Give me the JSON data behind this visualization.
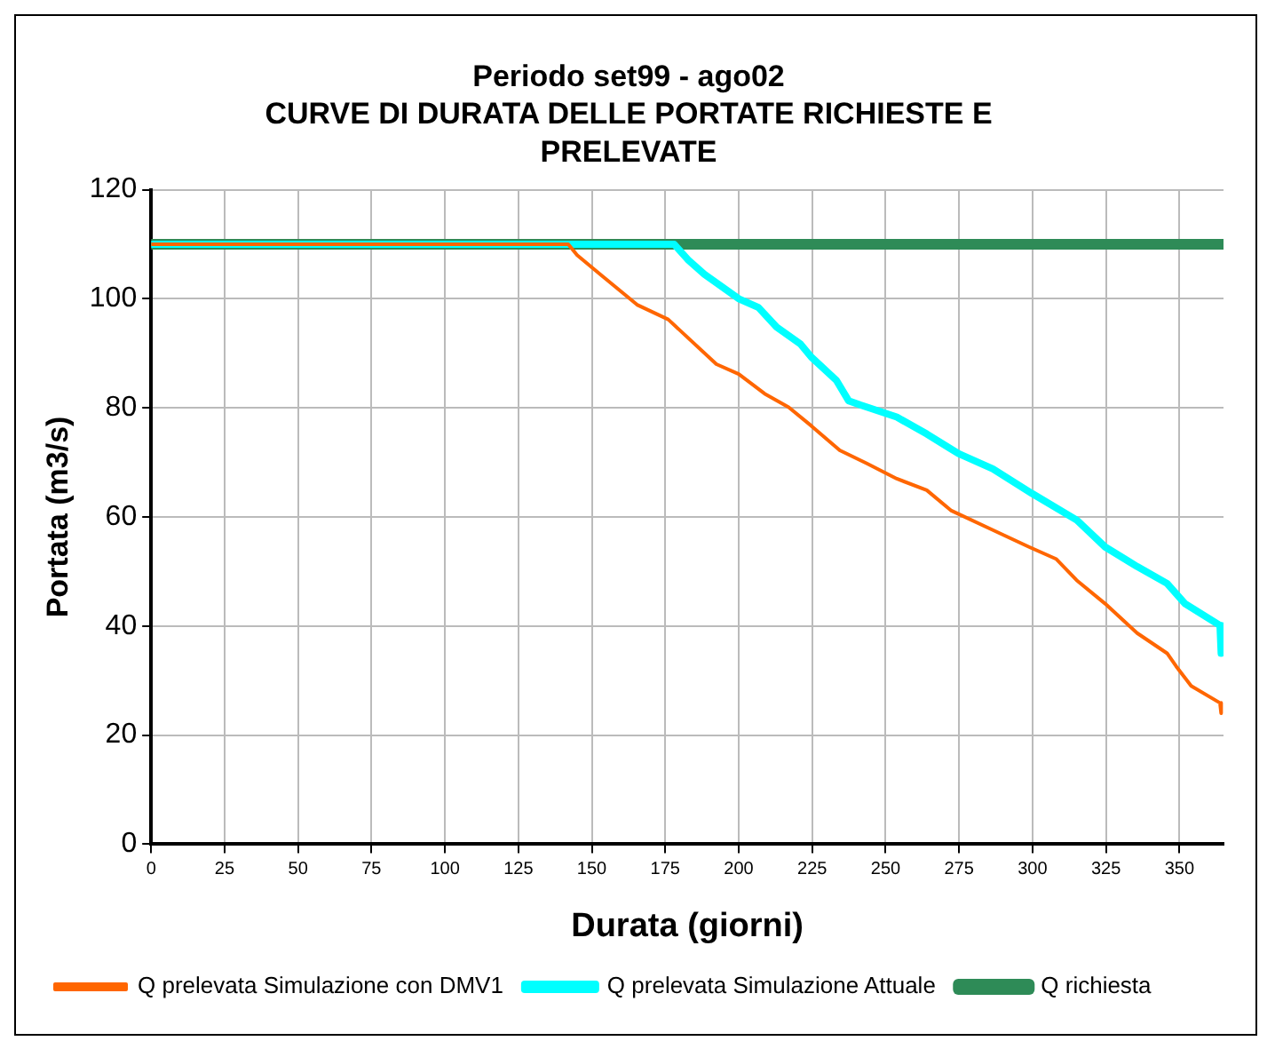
{
  "chart_data": {
    "type": "line",
    "title": [
      "Periodo set99 - ago02",
      "CURVE DI DURATA DELLE PORTATE RICHIESTE E",
      "PRELEVATE"
    ],
    "xlabel": "Durata (giorni)",
    "ylabel": "Portata (m3/s)",
    "xlim": [
      0,
      365
    ],
    "xticks": [
      0,
      25,
      50,
      75,
      100,
      125,
      150,
      175,
      200,
      225,
      250,
      275,
      300,
      325,
      350
    ],
    "ylim": [
      0,
      120
    ],
    "yticks": [
      0,
      20,
      40,
      60,
      80,
      100,
      120
    ],
    "grid": true,
    "legend": "bottom",
    "marker": "none",
    "line_style": "solid",
    "series": [
      {
        "name": "Q richiesta",
        "color": "#2e8b57",
        "x": [
          0,
          365
        ],
        "values": [
          110,
          110
        ]
      },
      {
        "name": "Q prelevata Simulazione Attuale",
        "color": "#00ffff",
        "x": [
          0,
          178,
          183,
          188.3,
          200,
          206.7,
          212.9,
          221,
          224.7,
          233.3,
          237.4,
          241.5,
          253.8,
          264,
          274.8,
          286.5,
          299.8,
          315.1,
          324.7,
          335.6,
          345.8,
          351.9,
          363.8,
          364.2
        ],
        "values": [
          110,
          110,
          107,
          104.5,
          100,
          98.4,
          94.8,
          91.7,
          89.3,
          85,
          81.3,
          80.5,
          78.3,
          75.2,
          71.6,
          68.8,
          64.3,
          59.4,
          54.5,
          50.9,
          47.8,
          44.1,
          40.1,
          35
        ]
      },
      {
        "name": "Q prelevata Simulazione con DMV1",
        "color": "#ff6600",
        "x": [
          0,
          142,
          145,
          153,
          165.4,
          176,
          192.4,
          200,
          208.8,
          217,
          224.7,
          234.4,
          243.6,
          253.8,
          264,
          272.2,
          286.5,
          298.8,
          308,
          315,
          324.7,
          335.6,
          345.8,
          348.9,
          354,
          363.8,
          364.2
        ],
        "values": [
          110,
          110,
          108,
          104.4,
          98.9,
          96.2,
          88,
          86.2,
          82.6,
          80.1,
          76.7,
          72.2,
          69.8,
          67,
          64.9,
          61.2,
          57.6,
          54.5,
          52.3,
          48.4,
          44.1,
          38.7,
          35,
          32.6,
          29,
          25.9,
          24
        ]
      }
    ]
  }
}
